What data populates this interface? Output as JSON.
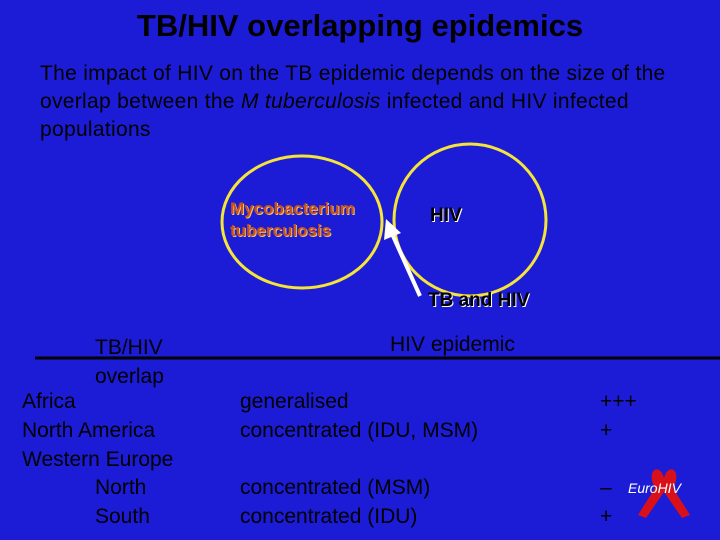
{
  "title": "TB/HIV overlapping epidemics",
  "intro": {
    "before": "The impact of HIV on the TB epidemic depends on the size of the overlap between the ",
    "italic": "M tuberculosis",
    "after": " infected and HIV infected populations"
  },
  "venn": {
    "left": "Mycobacterium tuberculosis",
    "right": "HIV",
    "overlap": "TB and HIV"
  },
  "table": {
    "headers": [
      "TB/HIV overlap",
      "HIV epidemic"
    ],
    "rows": [
      {
        "region": "Africa",
        "epidemic": "generalised",
        "overlap": "+++"
      },
      {
        "region": "North America",
        "epidemic": "concentrated (IDU, MSM)",
        "overlap": "+"
      },
      {
        "region": "Western Europe"
      },
      {
        "region": "North",
        "epidemic": "concentrated (MSM)",
        "overlap": "–"
      },
      {
        "region": "South",
        "epidemic": "concentrated (IDU)",
        "overlap": "+"
      }
    ]
  },
  "logo": "EuroHIV"
}
